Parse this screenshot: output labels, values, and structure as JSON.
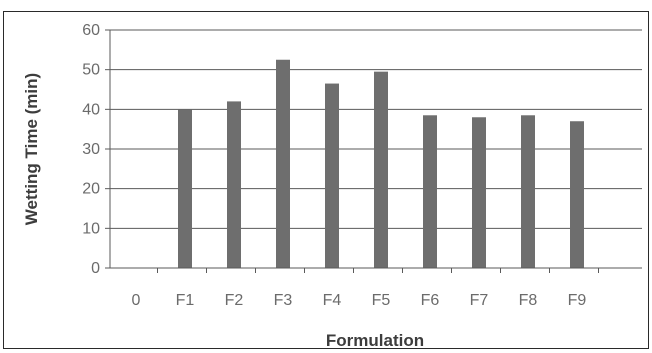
{
  "chart_data": {
    "type": "bar",
    "title": "",
    "xlabel": "Formulation",
    "ylabel": "Wetting Time (min)",
    "categories": [
      "0",
      "F1",
      "F2",
      "F3",
      "F4",
      "F5",
      "F6",
      "F7",
      "F8",
      "F9"
    ],
    "values": [
      null,
      40,
      42,
      52.5,
      46.5,
      49.5,
      38.5,
      38,
      38.5,
      37
    ],
    "ylim": [
      0,
      60
    ],
    "yticks": [
      0,
      10,
      20,
      30,
      40,
      50,
      60
    ],
    "grid": true,
    "legend": "none",
    "bar_color": "#6e6e6e"
  }
}
